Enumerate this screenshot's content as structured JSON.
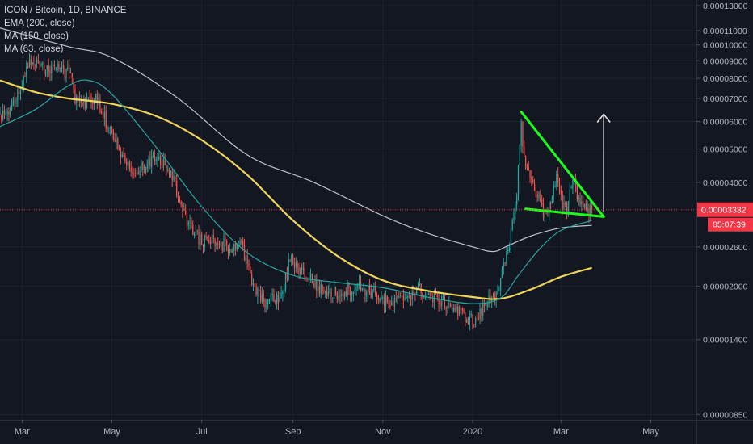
{
  "legend": {
    "title": "ICON / Bitcoin, 1D, BINANCE",
    "ema": "EMA (200, close)",
    "ma150": "MA (150, close)",
    "ma63": "MA (63, close)"
  },
  "price_tag": {
    "value": "0.00003332",
    "countdown": "05:07:39",
    "color": "#f23645"
  },
  "colors": {
    "background": "#131722",
    "grid": "#1e222d",
    "up": "#26a69a",
    "down": "#ef5350",
    "ema200": "#d1d4dc",
    "ma150": "#f0d35b",
    "ma63": "#26a6a0",
    "pattern": "#1aff1a",
    "arrow": "#e0e0e0"
  },
  "chart_data": {
    "type": "candlestick",
    "y_scale": "log",
    "ylim": [
      8.2e-06,
      0.000135
    ],
    "xlim": [
      "2019-02-14",
      "2020-06-01"
    ],
    "y_ticks": [
      "0.00013000",
      "0.00011000",
      "0.00010000",
      "0.00009000",
      "0.00008000",
      "0.00007000",
      "0.00006000",
      "0.00005000",
      "0.00004000",
      "0.00002600",
      "0.00002000",
      "0.00001400",
      "0.00000850"
    ],
    "x_ticks": [
      {
        "label": "Mar",
        "date": "2019-03-01"
      },
      {
        "label": "May",
        "date": "2019-05-01"
      },
      {
        "label": "Jul",
        "date": "2019-07-01"
      },
      {
        "label": "Sep",
        "date": "2019-09-01"
      },
      {
        "label": "Nov",
        "date": "2019-11-01"
      },
      {
        "label": "2020",
        "date": "2020-01-01"
      },
      {
        "label": "Mar",
        "date": "2020-03-01"
      },
      {
        "label": "May",
        "date": "2020-05-01"
      }
    ],
    "current_price": 3.332e-05,
    "price_anchors": [
      [
        "2019-02-14",
        6.1e-05
      ],
      [
        "2019-02-20",
        6.5e-05
      ],
      [
        "2019-02-26",
        7.2e-05
      ],
      [
        "2019-03-03",
        8.2e-05
      ],
      [
        "2019-03-06",
        9e-05
      ],
      [
        "2019-03-12",
        8.8e-05
      ],
      [
        "2019-03-20",
        8.4e-05
      ],
      [
        "2019-03-28",
        8.5e-05
      ],
      [
        "2019-04-03",
        8.2e-05
      ],
      [
        "2019-04-06",
        7e-05
      ],
      [
        "2019-04-15",
        6.8e-05
      ],
      [
        "2019-04-20",
        7e-05
      ],
      [
        "2019-04-27",
        6e-05
      ],
      [
        "2019-05-05",
        5.2e-05
      ],
      [
        "2019-05-12",
        4.4e-05
      ],
      [
        "2019-05-18",
        4.3e-05
      ],
      [
        "2019-05-28",
        4.6e-05
      ],
      [
        "2019-06-08",
        4.5e-05
      ],
      [
        "2019-06-15",
        3.7e-05
      ],
      [
        "2019-06-22",
        3e-05
      ],
      [
        "2019-06-30",
        2.7e-05
      ],
      [
        "2019-07-10",
        2.7e-05
      ],
      [
        "2019-07-20",
        2.6e-05
      ],
      [
        "2019-07-27",
        2.7e-05
      ],
      [
        "2019-08-05",
        2e-05
      ],
      [
        "2019-08-12",
        1.8e-05
      ],
      [
        "2019-08-24",
        1.85e-05
      ],
      [
        "2019-08-30",
        2.4e-05
      ],
      [
        "2019-09-10",
        2.15e-05
      ],
      [
        "2019-09-20",
        1.95e-05
      ],
      [
        "2019-10-01",
        1.9e-05
      ],
      [
        "2019-10-15",
        2e-05
      ],
      [
        "2019-10-28",
        1.9e-05
      ],
      [
        "2019-11-05",
        1.75e-05
      ],
      [
        "2019-11-15",
        1.85e-05
      ],
      [
        "2019-11-25",
        1.95e-05
      ],
      [
        "2019-12-05",
        1.85e-05
      ],
      [
        "2019-12-15",
        1.78e-05
      ],
      [
        "2019-12-25",
        1.65e-05
      ],
      [
        "2020-01-03",
        1.58e-05
      ],
      [
        "2020-01-10",
        1.78e-05
      ],
      [
        "2020-01-18",
        1.95e-05
      ],
      [
        "2020-01-26",
        2.6e-05
      ],
      [
        "2020-01-31",
        3.8e-05
      ],
      [
        "2020-02-03",
        5.8e-05
      ],
      [
        "2020-02-06",
        4.4e-05
      ],
      [
        "2020-02-12",
        3.9e-05
      ],
      [
        "2020-02-18",
        3.3e-05
      ],
      [
        "2020-02-22",
        3.4e-05
      ],
      [
        "2020-02-27",
        4.1e-05
      ],
      [
        "2020-03-02",
        3.4e-05
      ],
      [
        "2020-03-05",
        3.3e-05
      ],
      [
        "2020-03-09",
        4.2e-05
      ],
      [
        "2020-03-12",
        3.7e-05
      ],
      [
        "2020-03-15",
        3.45e-05
      ],
      [
        "2020-03-19",
        3.35e-05
      ],
      [
        "2020-03-22",
        3.33e-05
      ]
    ],
    "ema200_points": [
      [
        "2019-02-14",
        0.000112
      ],
      [
        "2019-04-01",
        9.9e-05
      ],
      [
        "2019-05-01",
        9.2e-05
      ],
      [
        "2019-06-15",
        7e-05
      ],
      [
        "2019-08-01",
        4.8e-05
      ],
      [
        "2019-09-15",
        4e-05
      ],
      [
        "2019-11-01",
        3.2e-05
      ],
      [
        "2019-12-01",
        2.85e-05
      ],
      [
        "2020-01-01",
        2.6e-05
      ],
      [
        "2020-01-15",
        2.52e-05
      ],
      [
        "2020-01-25",
        2.62e-05
      ],
      [
        "2020-02-10",
        2.8e-05
      ],
      [
        "2020-03-01",
        2.95e-05
      ],
      [
        "2020-03-22",
        3e-05
      ]
    ],
    "ma150_points": [
      [
        "2019-02-14",
        7.9e-05
      ],
      [
        "2019-03-10",
        7.3e-05
      ],
      [
        "2019-04-01",
        7e-05
      ],
      [
        "2019-05-01",
        6.75e-05
      ],
      [
        "2019-06-01",
        6.2e-05
      ],
      [
        "2019-07-01",
        5.3e-05
      ],
      [
        "2019-08-01",
        4.2e-05
      ],
      [
        "2019-09-01",
        3.1e-05
      ],
      [
        "2019-10-01",
        2.45e-05
      ],
      [
        "2019-11-01",
        2.08e-05
      ],
      [
        "2019-12-01",
        1.94e-05
      ],
      [
        "2020-01-01",
        1.86e-05
      ],
      [
        "2020-01-20",
        1.84e-05
      ],
      [
        "2020-02-10",
        1.96e-05
      ],
      [
        "2020-03-01",
        2.13e-05
      ],
      [
        "2020-03-22",
        2.26e-05
      ]
    ],
    "ma63_points": [
      [
        "2019-02-14",
        5.8e-05
      ],
      [
        "2019-03-10",
        6.5e-05
      ],
      [
        "2019-04-01",
        7.6e-05
      ],
      [
        "2019-04-15",
        7.9e-05
      ],
      [
        "2019-05-01",
        7.2e-05
      ],
      [
        "2019-06-01",
        5e-05
      ],
      [
        "2019-07-01",
        3.4e-05
      ],
      [
        "2019-08-01",
        2.5e-05
      ],
      [
        "2019-09-01",
        2.15e-05
      ],
      [
        "2019-10-01",
        2.05e-05
      ],
      [
        "2019-11-01",
        1.98e-05
      ],
      [
        "2019-12-01",
        1.86e-05
      ],
      [
        "2020-01-01",
        1.78e-05
      ],
      [
        "2020-01-20",
        1.85e-05
      ],
      [
        "2020-02-01",
        2.15e-05
      ],
      [
        "2020-02-15",
        2.55e-05
      ],
      [
        "2020-03-01",
        2.9e-05
      ],
      [
        "2020-03-22",
        3.1e-05
      ]
    ],
    "annotations": {
      "triangle_upper": [
        [
          "2020-02-03",
          6.4e-05
        ],
        [
          "2020-03-30",
          3.18e-05
        ]
      ],
      "triangle_lower": [
        [
          "2020-02-06",
          3.35e-05
        ],
        [
          "2020-03-30",
          3.18e-05
        ]
      ],
      "arrow": [
        [
          "2020-03-30",
          3.3e-05
        ],
        [
          "2020-03-30",
          6.3e-05
        ]
      ]
    }
  }
}
